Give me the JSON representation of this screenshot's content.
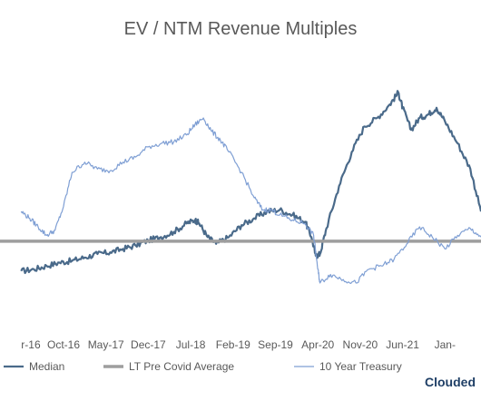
{
  "chart_data": {
    "type": "line",
    "title": "EV / NTM Revenue Multiples",
    "x_ticks": [
      "r-16",
      "Oct-16",
      "May-17",
      "Dec-17",
      "Jul-18",
      "Feb-19",
      "Sep-19",
      "Apr-20",
      "Nov-20",
      "Jun-21",
      "Jan-"
    ],
    "series": [
      {
        "name": "Median",
        "color": "#4a6a8a",
        "points": [
          [
            0,
            3.0
          ],
          [
            0.3,
            3.1
          ],
          [
            0.6,
            3.3
          ],
          [
            0.9,
            3.5
          ],
          [
            1.2,
            3.6
          ],
          [
            1.5,
            3.8
          ],
          [
            1.8,
            4.0
          ],
          [
            2.1,
            4.1
          ],
          [
            2.4,
            4.3
          ],
          [
            2.7,
            4.5
          ],
          [
            3.0,
            4.8
          ],
          [
            3.3,
            5.0
          ],
          [
            3.6,
            5.3
          ],
          [
            3.9,
            5.8
          ],
          [
            4.1,
            6.0
          ],
          [
            4.2,
            5.8
          ],
          [
            4.4,
            5.0
          ],
          [
            4.6,
            4.6
          ],
          [
            4.9,
            5.0
          ],
          [
            5.2,
            5.7
          ],
          [
            5.5,
            6.1
          ],
          [
            5.8,
            6.5
          ],
          [
            6.1,
            6.6
          ],
          [
            6.4,
            6.3
          ],
          [
            6.7,
            5.9
          ],
          [
            6.85,
            5.0
          ],
          [
            6.95,
            3.9
          ],
          [
            7.05,
            4.0
          ],
          [
            7.2,
            5.5
          ],
          [
            7.5,
            8.0
          ],
          [
            7.8,
            10.0
          ],
          [
            8.1,
            11.5
          ],
          [
            8.4,
            12.0
          ],
          [
            8.7,
            12.8
          ],
          [
            8.9,
            13.5
          ],
          [
            9.0,
            12.6
          ],
          [
            9.2,
            11.3
          ],
          [
            9.4,
            12.0
          ],
          [
            9.6,
            12.2
          ],
          [
            9.8,
            12.6
          ],
          [
            10.0,
            11.8
          ],
          [
            10.3,
            10.5
          ],
          [
            10.6,
            9.0
          ],
          [
            10.85,
            6.5
          ]
        ]
      },
      {
        "name": "LT Pre Covid Average",
        "color": "#9e9e9e",
        "points": [
          [
            -0.5,
            4.75
          ],
          [
            10.85,
            4.75
          ]
        ]
      },
      {
        "name": "10 Year Treasury",
        "color": "#7f9fd4",
        "points": [
          [
            0,
            6.5
          ],
          [
            0.2,
            6.1
          ],
          [
            0.4,
            5.6
          ],
          [
            0.6,
            5.1
          ],
          [
            0.8,
            5.4
          ],
          [
            1.0,
            6.8
          ],
          [
            1.2,
            8.8
          ],
          [
            1.5,
            9.4
          ],
          [
            1.8,
            9.0
          ],
          [
            2.1,
            8.9
          ],
          [
            2.4,
            9.4
          ],
          [
            2.7,
            9.7
          ],
          [
            3.0,
            10.3
          ],
          [
            3.3,
            10.5
          ],
          [
            3.6,
            10.6
          ],
          [
            3.9,
            11.0
          ],
          [
            4.1,
            11.6
          ],
          [
            4.3,
            12.0
          ],
          [
            4.5,
            11.2
          ],
          [
            4.7,
            10.7
          ],
          [
            4.9,
            10.0
          ],
          [
            5.2,
            8.8
          ],
          [
            5.5,
            7.3
          ],
          [
            5.7,
            6.6
          ],
          [
            5.9,
            6.6
          ],
          [
            6.1,
            6.3
          ],
          [
            6.4,
            6.0
          ],
          [
            6.7,
            5.8
          ],
          [
            6.9,
            5.1
          ],
          [
            7.0,
            3.1
          ],
          [
            7.05,
            2.3
          ],
          [
            7.3,
            2.8
          ],
          [
            7.6,
            2.5
          ],
          [
            7.9,
            2.3
          ],
          [
            8.2,
            3.1
          ],
          [
            8.5,
            3.3
          ],
          [
            8.8,
            3.7
          ],
          [
            9.1,
            4.6
          ],
          [
            9.4,
            5.6
          ],
          [
            9.7,
            5.0
          ],
          [
            10.0,
            4.3
          ],
          [
            10.3,
            5.1
          ],
          [
            10.6,
            5.5
          ],
          [
            10.85,
            5.0
          ]
        ]
      }
    ],
    "xlim": [
      -0.5,
      10.85
    ],
    "ylim": [
      0,
      16
    ],
    "legend_position": "bottom",
    "grid": false
  },
  "brand": "Clouded"
}
